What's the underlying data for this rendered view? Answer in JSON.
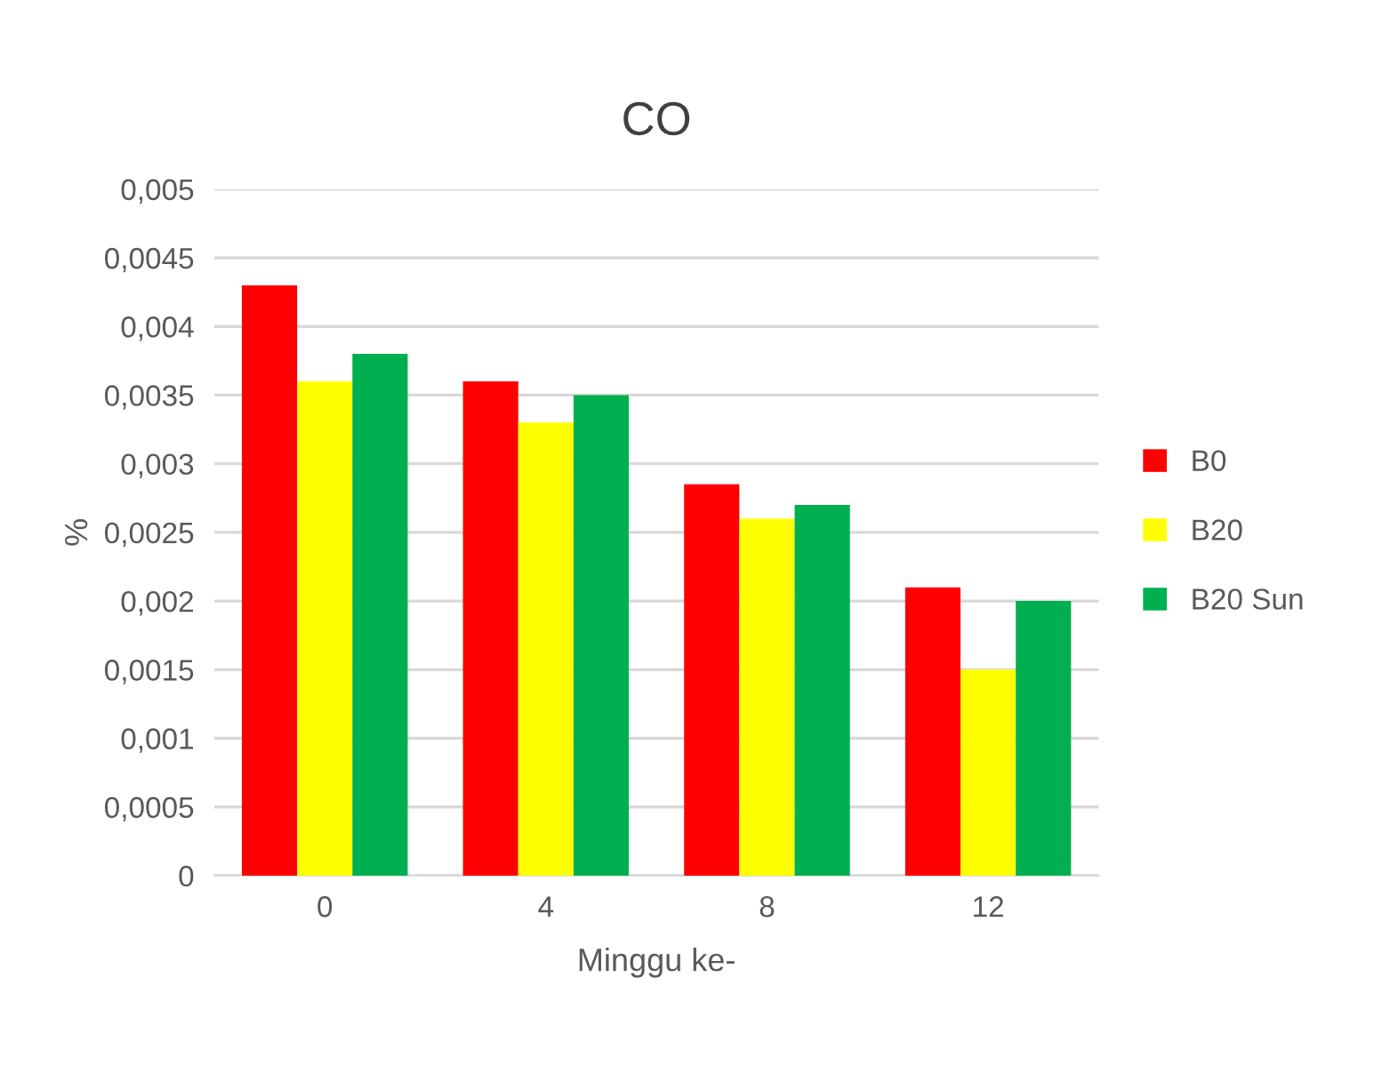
{
  "chart_data": {
    "type": "bar",
    "title": "CO",
    "xlabel": "Minggu ke-",
    "ylabel": "%",
    "categories": [
      "0",
      "4",
      "8",
      "12"
    ],
    "series": [
      {
        "name": "B0",
        "color": "#ff0000",
        "values": [
          0.0043,
          0.0036,
          0.00285,
          0.0021
        ]
      },
      {
        "name": "B20",
        "color": "#ffff00",
        "values": [
          0.0036,
          0.0033,
          0.0026,
          0.0015
        ]
      },
      {
        "name": "B20 Sun",
        "color": "#00b050",
        "values": [
          0.0038,
          0.0035,
          0.0027,
          0.002
        ]
      }
    ],
    "ylim": [
      0,
      0.005
    ],
    "yticks": [
      0,
      {
        "value": 0.0005,
        "label": "0,0005"
      },
      {
        "value": 0.001,
        "label": "0,001"
      },
      {
        "value": 0.0015,
        "label": "0,0015"
      },
      {
        "value": 0.002,
        "label": "0,002"
      },
      {
        "value": 0.0025,
        "label": "0,0025"
      },
      {
        "value": 0.003,
        "label": "0,003"
      },
      {
        "value": 0.0035,
        "label": "0,0035"
      },
      {
        "value": 0.004,
        "label": "0,004"
      },
      {
        "value": 0.0045,
        "label": "0,0045"
      },
      {
        "value": 0.005,
        "label": "0,005"
      }
    ],
    "grid": "y",
    "legend": "right"
  }
}
